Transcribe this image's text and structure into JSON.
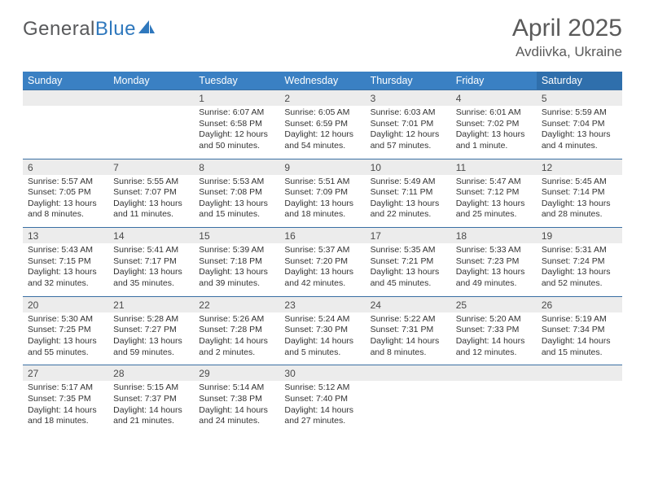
{
  "logo": {
    "part1": "General",
    "part2": "Blue"
  },
  "title": "April 2025",
  "location": "Avdiivka, Ukraine",
  "colors": {
    "header_bg": "#3a80c3",
    "saturday_bg": "#2f6fac",
    "daynum_bg": "#ececec",
    "border": "#3a6fa3",
    "day_text": "#4a4a4a",
    "info_text": "#333333"
  },
  "weekdays": [
    "Sunday",
    "Monday",
    "Tuesday",
    "Wednesday",
    "Thursday",
    "Friday",
    "Saturday"
  ],
  "weeks": [
    {
      "days": [
        {
          "num": "",
          "sunrise": "",
          "sunset": "",
          "daylight": ""
        },
        {
          "num": "",
          "sunrise": "",
          "sunset": "",
          "daylight": ""
        },
        {
          "num": "1",
          "sunrise": "Sunrise: 6:07 AM",
          "sunset": "Sunset: 6:58 PM",
          "daylight": "Daylight: 12 hours and 50 minutes."
        },
        {
          "num": "2",
          "sunrise": "Sunrise: 6:05 AM",
          "sunset": "Sunset: 6:59 PM",
          "daylight": "Daylight: 12 hours and 54 minutes."
        },
        {
          "num": "3",
          "sunrise": "Sunrise: 6:03 AM",
          "sunset": "Sunset: 7:01 PM",
          "daylight": "Daylight: 12 hours and 57 minutes."
        },
        {
          "num": "4",
          "sunrise": "Sunrise: 6:01 AM",
          "sunset": "Sunset: 7:02 PM",
          "daylight": "Daylight: 13 hours and 1 minute."
        },
        {
          "num": "5",
          "sunrise": "Sunrise: 5:59 AM",
          "sunset": "Sunset: 7:04 PM",
          "daylight": "Daylight: 13 hours and 4 minutes."
        }
      ]
    },
    {
      "days": [
        {
          "num": "6",
          "sunrise": "Sunrise: 5:57 AM",
          "sunset": "Sunset: 7:05 PM",
          "daylight": "Daylight: 13 hours and 8 minutes."
        },
        {
          "num": "7",
          "sunrise": "Sunrise: 5:55 AM",
          "sunset": "Sunset: 7:07 PM",
          "daylight": "Daylight: 13 hours and 11 minutes."
        },
        {
          "num": "8",
          "sunrise": "Sunrise: 5:53 AM",
          "sunset": "Sunset: 7:08 PM",
          "daylight": "Daylight: 13 hours and 15 minutes."
        },
        {
          "num": "9",
          "sunrise": "Sunrise: 5:51 AM",
          "sunset": "Sunset: 7:09 PM",
          "daylight": "Daylight: 13 hours and 18 minutes."
        },
        {
          "num": "10",
          "sunrise": "Sunrise: 5:49 AM",
          "sunset": "Sunset: 7:11 PM",
          "daylight": "Daylight: 13 hours and 22 minutes."
        },
        {
          "num": "11",
          "sunrise": "Sunrise: 5:47 AM",
          "sunset": "Sunset: 7:12 PM",
          "daylight": "Daylight: 13 hours and 25 minutes."
        },
        {
          "num": "12",
          "sunrise": "Sunrise: 5:45 AM",
          "sunset": "Sunset: 7:14 PM",
          "daylight": "Daylight: 13 hours and 28 minutes."
        }
      ]
    },
    {
      "days": [
        {
          "num": "13",
          "sunrise": "Sunrise: 5:43 AM",
          "sunset": "Sunset: 7:15 PM",
          "daylight": "Daylight: 13 hours and 32 minutes."
        },
        {
          "num": "14",
          "sunrise": "Sunrise: 5:41 AM",
          "sunset": "Sunset: 7:17 PM",
          "daylight": "Daylight: 13 hours and 35 minutes."
        },
        {
          "num": "15",
          "sunrise": "Sunrise: 5:39 AM",
          "sunset": "Sunset: 7:18 PM",
          "daylight": "Daylight: 13 hours and 39 minutes."
        },
        {
          "num": "16",
          "sunrise": "Sunrise: 5:37 AM",
          "sunset": "Sunset: 7:20 PM",
          "daylight": "Daylight: 13 hours and 42 minutes."
        },
        {
          "num": "17",
          "sunrise": "Sunrise: 5:35 AM",
          "sunset": "Sunset: 7:21 PM",
          "daylight": "Daylight: 13 hours and 45 minutes."
        },
        {
          "num": "18",
          "sunrise": "Sunrise: 5:33 AM",
          "sunset": "Sunset: 7:23 PM",
          "daylight": "Daylight: 13 hours and 49 minutes."
        },
        {
          "num": "19",
          "sunrise": "Sunrise: 5:31 AM",
          "sunset": "Sunset: 7:24 PM",
          "daylight": "Daylight: 13 hours and 52 minutes."
        }
      ]
    },
    {
      "days": [
        {
          "num": "20",
          "sunrise": "Sunrise: 5:30 AM",
          "sunset": "Sunset: 7:25 PM",
          "daylight": "Daylight: 13 hours and 55 minutes."
        },
        {
          "num": "21",
          "sunrise": "Sunrise: 5:28 AM",
          "sunset": "Sunset: 7:27 PM",
          "daylight": "Daylight: 13 hours and 59 minutes."
        },
        {
          "num": "22",
          "sunrise": "Sunrise: 5:26 AM",
          "sunset": "Sunset: 7:28 PM",
          "daylight": "Daylight: 14 hours and 2 minutes."
        },
        {
          "num": "23",
          "sunrise": "Sunrise: 5:24 AM",
          "sunset": "Sunset: 7:30 PM",
          "daylight": "Daylight: 14 hours and 5 minutes."
        },
        {
          "num": "24",
          "sunrise": "Sunrise: 5:22 AM",
          "sunset": "Sunset: 7:31 PM",
          "daylight": "Daylight: 14 hours and 8 minutes."
        },
        {
          "num": "25",
          "sunrise": "Sunrise: 5:20 AM",
          "sunset": "Sunset: 7:33 PM",
          "daylight": "Daylight: 14 hours and 12 minutes."
        },
        {
          "num": "26",
          "sunrise": "Sunrise: 5:19 AM",
          "sunset": "Sunset: 7:34 PM",
          "daylight": "Daylight: 14 hours and 15 minutes."
        }
      ]
    },
    {
      "days": [
        {
          "num": "27",
          "sunrise": "Sunrise: 5:17 AM",
          "sunset": "Sunset: 7:35 PM",
          "daylight": "Daylight: 14 hours and 18 minutes."
        },
        {
          "num": "28",
          "sunrise": "Sunrise: 5:15 AM",
          "sunset": "Sunset: 7:37 PM",
          "daylight": "Daylight: 14 hours and 21 minutes."
        },
        {
          "num": "29",
          "sunrise": "Sunrise: 5:14 AM",
          "sunset": "Sunset: 7:38 PM",
          "daylight": "Daylight: 14 hours and 24 minutes."
        },
        {
          "num": "30",
          "sunrise": "Sunrise: 5:12 AM",
          "sunset": "Sunset: 7:40 PM",
          "daylight": "Daylight: 14 hours and 27 minutes."
        },
        {
          "num": "",
          "sunrise": "",
          "sunset": "",
          "daylight": ""
        },
        {
          "num": "",
          "sunrise": "",
          "sunset": "",
          "daylight": ""
        },
        {
          "num": "",
          "sunrise": "",
          "sunset": "",
          "daylight": ""
        }
      ]
    }
  ]
}
